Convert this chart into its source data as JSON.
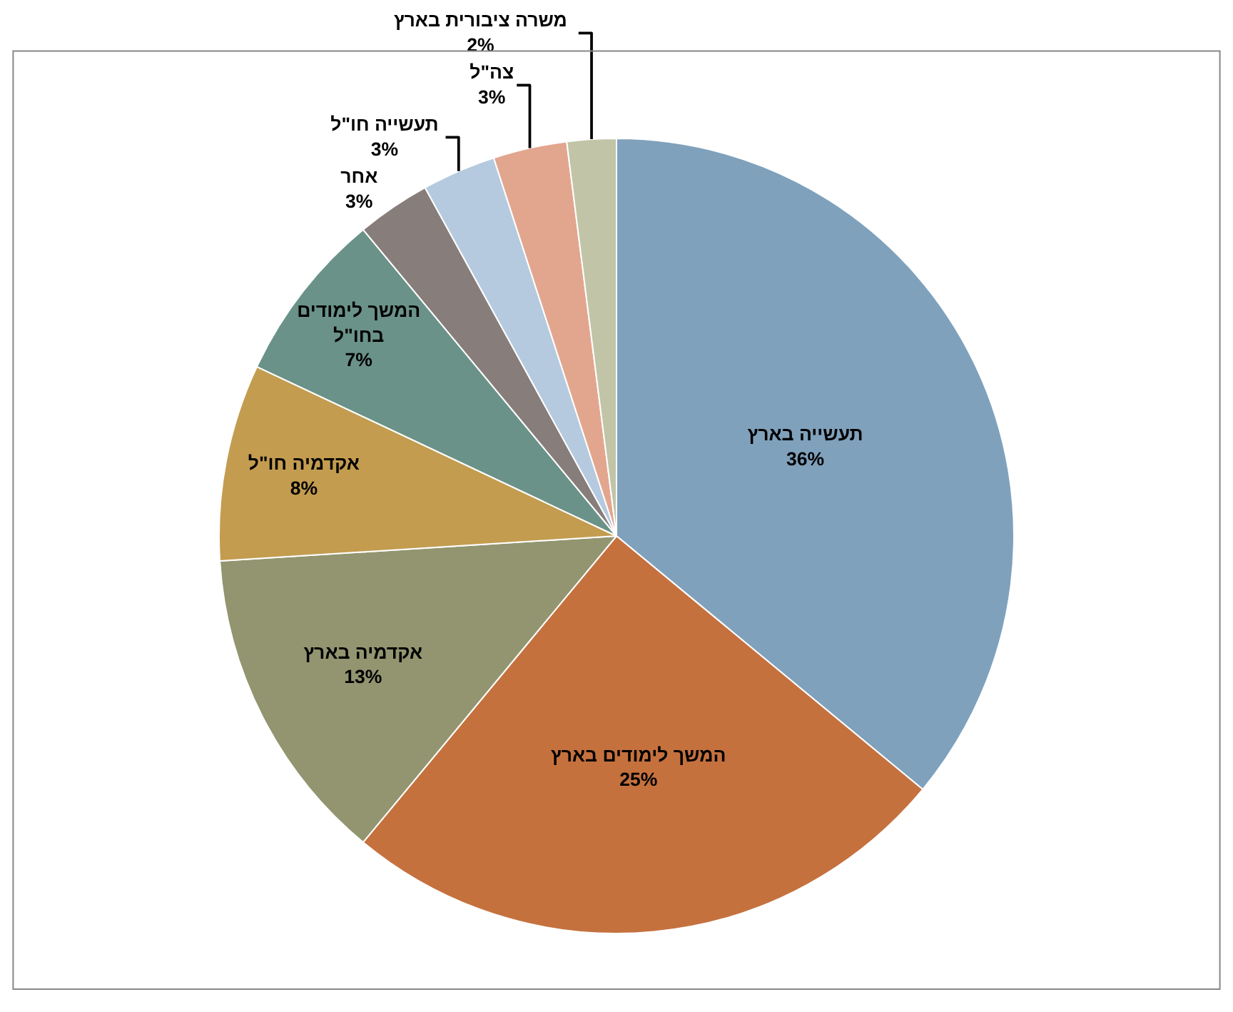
{
  "chart_data": {
    "type": "pie",
    "categories": [
      "תעשייה בארץ",
      "המשך לימודים בארץ",
      "אקדמיה בארץ",
      "אקדמיה חו\"ל",
      "המשך לימודים בחו\"ל",
      "אחר",
      "תעשייה חו\"ל",
      "צה\"ל",
      "משרה ציבורית בארץ"
    ],
    "values": [
      36,
      25,
      13,
      8,
      7,
      3,
      3,
      3,
      2
    ],
    "value_labels": [
      "36%",
      "25%",
      "13%",
      "8%",
      "7%",
      "3%",
      "3%",
      "3%",
      "2%"
    ],
    "colors": [
      "#7fa1bc",
      "#c5713e",
      "#92956f",
      "#c39c50",
      "#6a9288",
      "#877d7a",
      "#b5cadf",
      "#e2a68e",
      "#c2c4a8"
    ],
    "legend": false
  }
}
